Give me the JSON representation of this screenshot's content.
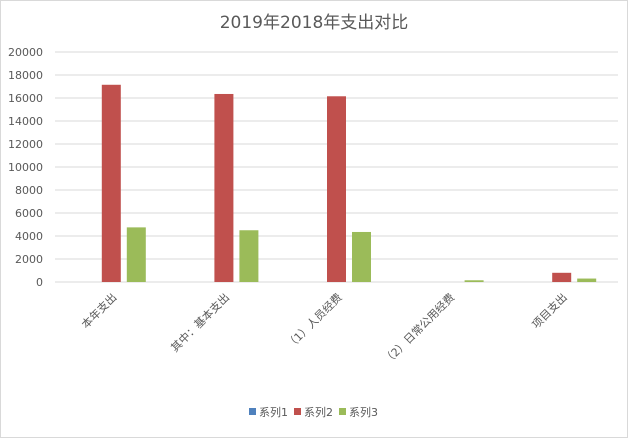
{
  "chart_data": {
    "type": "bar",
    "title": "2019年2018年支出对比",
    "categories": [
      "本年支出",
      "其中：基本支出",
      "（1）人员经费",
      "（2）日常公用经费",
      "项目支出"
    ],
    "series": [
      {
        "name": "系列1",
        "color": "#4F81BD",
        "values": [
          0,
          0,
          0,
          0,
          0
        ]
      },
      {
        "name": "系列2",
        "color": "#C0504D",
        "values": [
          17150,
          16350,
          16150,
          0,
          800
        ]
      },
      {
        "name": "系列3",
        "color": "#9BBB59",
        "values": [
          4750,
          4500,
          4350,
          150,
          300
        ]
      }
    ],
    "ylim": [
      0,
      20000
    ],
    "yticks": [
      "0",
      "2000",
      "4000",
      "6000",
      "8000",
      "10000",
      "12000",
      "14000",
      "16000",
      "18000",
      "20000"
    ],
    "grid": true,
    "legend_position": "bottom"
  }
}
